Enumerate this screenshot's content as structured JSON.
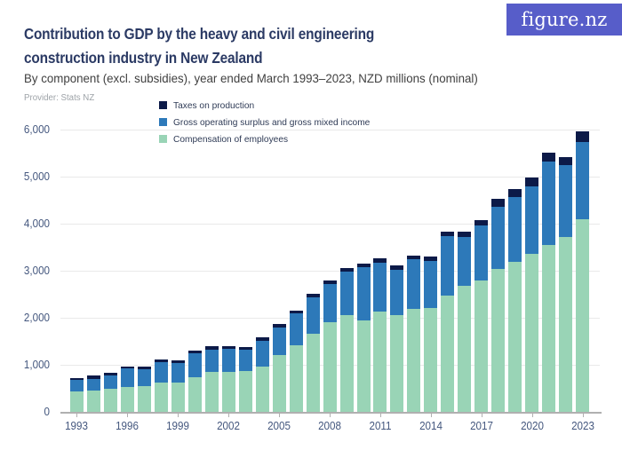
{
  "header": {
    "logo_text": "figure.nz",
    "title_line1": "Contribution to GDP by the heavy and civil engineering",
    "title_line2": "construction industry in New Zealand",
    "subtitle": "By component (excl. subsidies), year ended March 1993–2023, NZD millions (nominal)",
    "provider": "Provider: Stats NZ"
  },
  "colors": {
    "taxes": "#0c1a48",
    "gos": "#2d79b9",
    "compensation": "#99d4b6",
    "title_text": "#2b3a64",
    "subtitle_text": "#404040",
    "provider_text": "#9ea3a8",
    "axis_text": "#44577e",
    "grid": "#e9e9e9",
    "axis_line": "#b0b0b0",
    "logo_bg": "#575dc9",
    "logo_text": "#ffffff"
  },
  "legend": {
    "items": [
      {
        "label": "Taxes on production",
        "color_key": "taxes"
      },
      {
        "label": "Gross operating surplus and gross mixed income",
        "color_key": "gos"
      },
      {
        "label": "Compensation of employees",
        "color_key": "compensation"
      }
    ]
  },
  "chart_data": {
    "type": "bar",
    "stacked": true,
    "title": "Contribution to GDP by the heavy and civil engineering construction industry in New Zealand",
    "subtitle": "By component (excl. subsidies), year ended March 1993–2023, NZD millions (nominal)",
    "xlabel": "Year ended March",
    "ylabel": "NZD millions (nominal)",
    "ylim": [
      0,
      6000
    ],
    "grid": true,
    "legend_position": "top",
    "y_ticks": [
      {
        "value": 0,
        "label": "0"
      },
      {
        "value": 1000,
        "label": "1,000"
      },
      {
        "value": 2000,
        "label": "2,000"
      },
      {
        "value": 3000,
        "label": "3,000"
      },
      {
        "value": 4000,
        "label": "4,000"
      },
      {
        "value": 5000,
        "label": "5,000"
      },
      {
        "value": 6000,
        "label": "6,000"
      }
    ],
    "x_labeled_years": [
      1993,
      1996,
      1999,
      2002,
      2005,
      2008,
      2011,
      2014,
      2017,
      2020,
      2023
    ],
    "categories": [
      1993,
      1994,
      1995,
      1996,
      1997,
      1998,
      1999,
      2000,
      2001,
      2002,
      2003,
      2004,
      2005,
      2006,
      2007,
      2008,
      2009,
      2010,
      2011,
      2012,
      2013,
      2014,
      2015,
      2016,
      2017,
      2018,
      2019,
      2020,
      2021,
      2022,
      2023
    ],
    "series": [
      {
        "name": "Compensation of employees",
        "color_key": "compensation",
        "values": [
          440,
          450,
          490,
          525,
          545,
          630,
          615,
          740,
          840,
          845,
          860,
          955,
          1215,
          1415,
          1665,
          1900,
          2060,
          1950,
          2135,
          2065,
          2185,
          2215,
          2475,
          2680,
          2795,
          3030,
          3195,
          3365,
          3540,
          3725,
          4100
        ]
      },
      {
        "name": "Gross operating surplus and gross mixed income",
        "color_key": "gos",
        "values": [
          230,
          255,
          285,
          390,
          360,
          425,
          430,
          510,
          485,
          500,
          460,
          560,
          580,
          670,
          770,
          825,
          925,
          1130,
          1040,
          960,
          1060,
          995,
          1255,
          1040,
          1175,
          1325,
          1380,
          1430,
          1775,
          1515,
          1645
        ]
      },
      {
        "name": "Taxes on production",
        "color_key": "taxes",
        "values": [
          55,
          60,
          60,
          55,
          55,
          60,
          55,
          60,
          65,
          60,
          55,
          65,
          65,
          70,
          70,
          75,
          75,
          75,
          80,
          80,
          85,
          90,
          100,
          105,
          105,
          170,
          170,
          190,
          190,
          170,
          215
        ]
      }
    ]
  }
}
